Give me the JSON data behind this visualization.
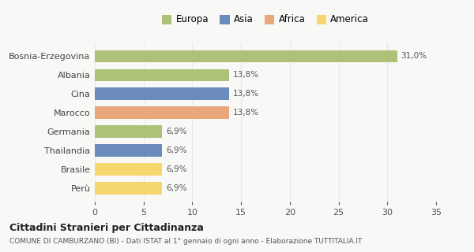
{
  "categories": [
    "Bosnia-Erzegovina",
    "Albania",
    "Cina",
    "Marocco",
    "Germania",
    "Thailandia",
    "Brasile",
    "Perù"
  ],
  "values": [
    31.0,
    13.8,
    13.8,
    13.8,
    6.9,
    6.9,
    6.9,
    6.9
  ],
  "bar_colors": [
    "#adc178",
    "#adc178",
    "#6b8cba",
    "#e8a87c",
    "#adc178",
    "#6b8cba",
    "#f5d76e",
    "#f5d76e"
  ],
  "labels": [
    "31,0%",
    "13,8%",
    "13,8%",
    "13,8%",
    "6,9%",
    "6,9%",
    "6,9%",
    "6,9%"
  ],
  "legend_items": [
    {
      "label": "Europa",
      "color": "#adc178"
    },
    {
      "label": "Asia",
      "color": "#6b8cba"
    },
    {
      "label": "Africa",
      "color": "#e8a87c"
    },
    {
      "label": "America",
      "color": "#f5d76e"
    }
  ],
  "xlim": [
    0,
    35
  ],
  "xticks": [
    0,
    5,
    10,
    15,
    20,
    25,
    30,
    35
  ],
  "title": "Cittadini Stranieri per Cittadinanza",
  "subtitle": "COMUNE DI CAMBURZANO (BI) - Dati ISTAT al 1° gennaio di ogni anno - Elaborazione TUTTITALIA.IT",
  "background_color": "#f8f8f6",
  "grid_color": "#e8e8e8",
  "bar_height": 0.65,
  "label_fontsize": 7.5,
  "ytick_fontsize": 8,
  "xtick_fontsize": 8,
  "title_fontsize": 9,
  "subtitle_fontsize": 6.5,
  "legend_fontsize": 8.5
}
